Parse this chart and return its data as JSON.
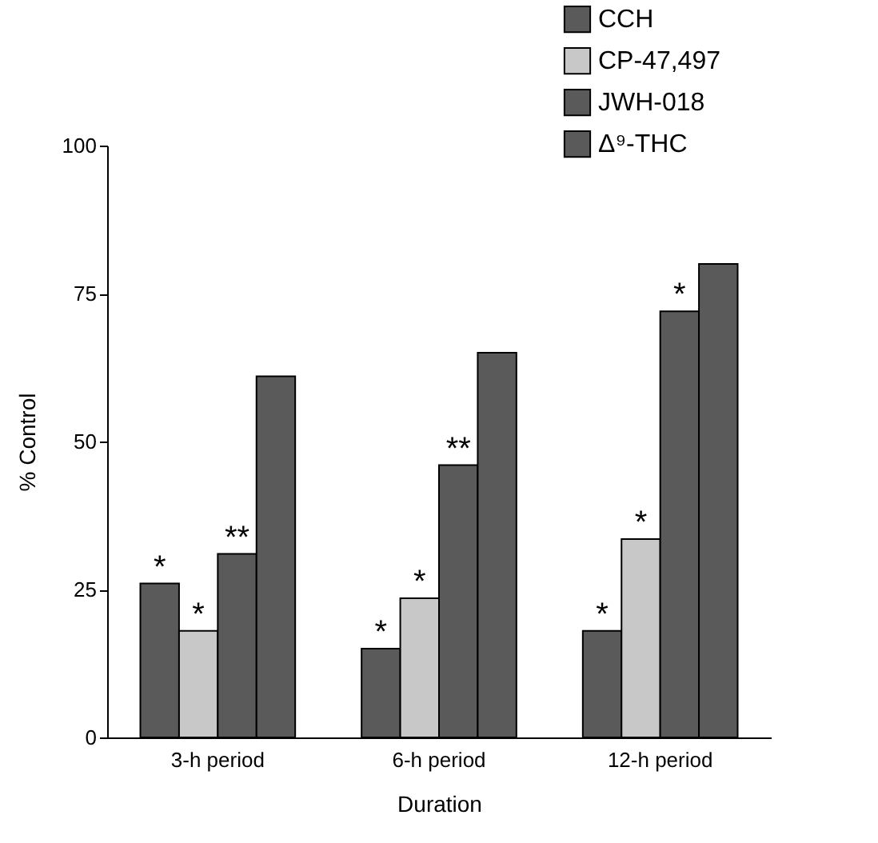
{
  "chart_data": {
    "type": "bar",
    "categories": [
      "3-h period",
      "6-h period",
      "12-h period"
    ],
    "series": [
      {
        "name": "CCH",
        "color": "#5a5a5a",
        "values": [
          26,
          15,
          18
        ]
      },
      {
        "name": "CP-47,497",
        "color": "#c8c8c8",
        "values": [
          18,
          23.5,
          33.5
        ]
      },
      {
        "name": "JWH-018",
        "color": "#5a5a5a",
        "values": [
          31,
          46,
          72
        ]
      },
      {
        "name": "Δ⁹-THC",
        "color": "#5a5a5a",
        "values": [
          61,
          65,
          80
        ]
      }
    ],
    "xlabel": "Duration",
    "ylabel": "% Control",
    "ylim": [
      0,
      100
    ],
    "yticks": [
      0,
      25,
      50,
      75,
      100
    ],
    "grid": false,
    "legend": "top right",
    "annotations": [
      {
        "text": "*",
        "x": "3-h period",
        "y": 26
      },
      {
        "text": "*",
        "x": "3-h period",
        "y": 18
      },
      {
        "text": "**",
        "x": "3-h period",
        "y": 31
      },
      {
        "text": "*",
        "x": "6-h period",
        "y": 15
      },
      {
        "text": "*",
        "x": "6-h period",
        "y": 23.5
      },
      {
        "text": "**",
        "x": "6-h period",
        "y": 46
      },
      {
        "text": "*",
        "x": "12-h period",
        "y": 18
      },
      {
        "text": "*",
        "x": "12-h period",
        "y": 33.5
      },
      {
        "text": "*",
        "x": "12-h period",
        "y": 72
      }
    ]
  }
}
